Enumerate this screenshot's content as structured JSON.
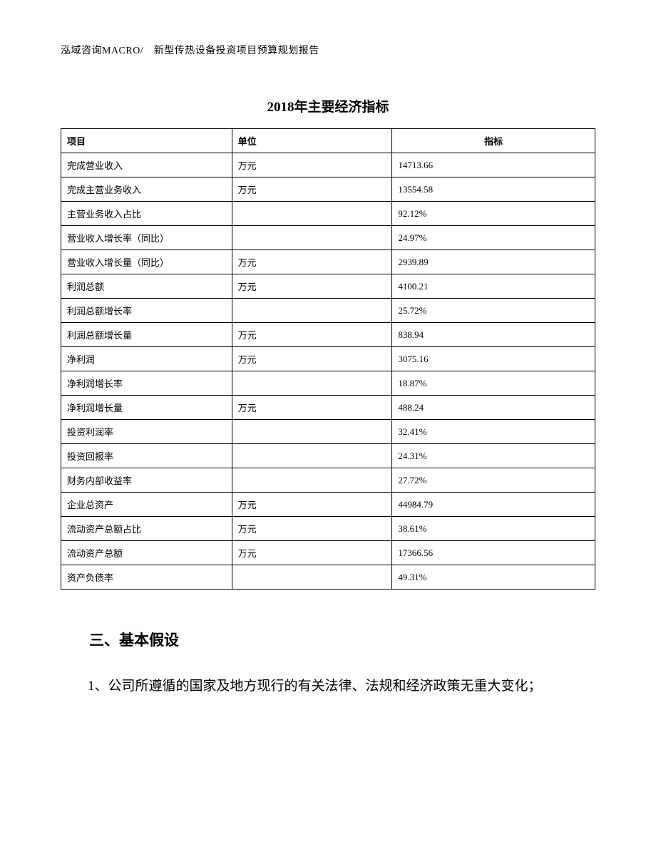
{
  "header": {
    "text": "泓域咨询MACRO/　新型传热设备投资项目预算规划报告"
  },
  "table": {
    "title": "2018年主要经济指标",
    "columns": [
      "项目",
      "单位",
      "指标"
    ],
    "rows": [
      [
        "完成营业收入",
        "万元",
        "14713.66"
      ],
      [
        "完成主营业务收入",
        "万元",
        "13554.58"
      ],
      [
        "主营业务收入占比",
        "",
        "92.12%"
      ],
      [
        "营业收入增长率（同比）",
        "",
        "24.97%"
      ],
      [
        "营业收入增长量（同比）",
        "万元",
        "2939.89"
      ],
      [
        "利润总额",
        "万元",
        "4100.21"
      ],
      [
        "利润总额增长率",
        "",
        "25.72%"
      ],
      [
        "利润总额增长量",
        "万元",
        "838.94"
      ],
      [
        "净利润",
        "万元",
        "3075.16"
      ],
      [
        "净利润增长率",
        "",
        "18.87%"
      ],
      [
        "净利润增长量",
        "万元",
        "488.24"
      ],
      [
        "投资利润率",
        "",
        "32.41%"
      ],
      [
        "投资回报率",
        "",
        "24.31%"
      ],
      [
        "财务内部收益率",
        "",
        "27.72%"
      ],
      [
        "企业总资产",
        "万元",
        "44984.79"
      ],
      [
        "流动资产总额占比",
        "万元",
        "38.61%"
      ],
      [
        "流动资产总额",
        "万元",
        "17366.56"
      ],
      [
        "资产负债率",
        "",
        "49.31%"
      ]
    ]
  },
  "section": {
    "heading": "三、基本假设",
    "paragraph": "1、公司所遵循的国家及地方现行的有关法律、法规和经济政策无重大变化；"
  }
}
